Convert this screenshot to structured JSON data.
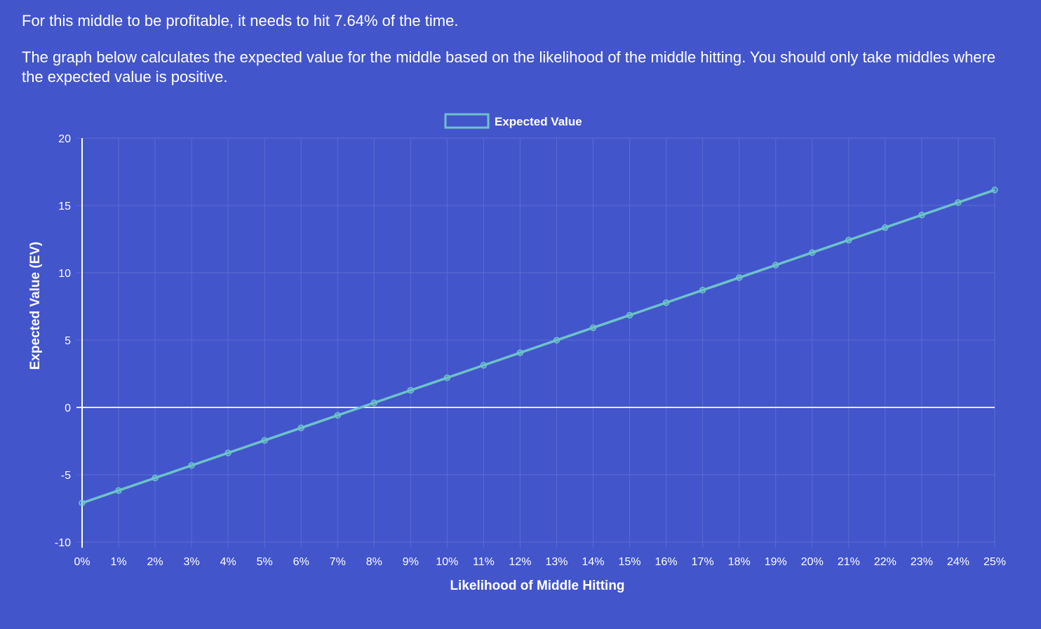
{
  "intro": {
    "profit_line": "For this middle to be profitable, it needs to hit 7.64% of the time.",
    "explanation": "The graph below calculates the expected value for the middle based on the likelihood of the middle hitting. You should only take middles where the expected value is positive."
  },
  "colors": {
    "background": "#4355cb",
    "line": "#6cc3c9",
    "grid": "#5b6bd3",
    "zero_line": "#e6e8f5",
    "axis": "#ffffff"
  },
  "chart_data": {
    "type": "line",
    "xlabel": "Likelihood of Middle Hitting",
    "ylabel": "Expected Value (EV)",
    "legend": {
      "position": "top-center",
      "entries": [
        "Expected Value"
      ]
    },
    "grid": true,
    "ylim": [
      -10,
      20
    ],
    "yticks": [
      "20",
      "15",
      "10",
      "5",
      "0",
      "-5",
      "-10"
    ],
    "categories": [
      "0%",
      "1%",
      "2%",
      "3%",
      "4%",
      "5%",
      "6%",
      "7%",
      "8%",
      "9%",
      "10%",
      "11%",
      "12%",
      "13%",
      "14%",
      "15%",
      "16%",
      "17%",
      "18%",
      "19%",
      "20%",
      "21%",
      "22%",
      "23%",
      "24%",
      "25%"
    ],
    "series": [
      {
        "name": "Expected Value",
        "values": [
          -7.1,
          -6.17,
          -5.24,
          -4.31,
          -3.38,
          -2.45,
          -1.52,
          -0.59,
          0.34,
          1.27,
          2.2,
          3.13,
          4.06,
          4.99,
          5.92,
          6.85,
          7.78,
          8.71,
          9.64,
          10.57,
          11.5,
          12.43,
          13.36,
          14.29,
          15.22,
          16.15
        ]
      }
    ]
  }
}
